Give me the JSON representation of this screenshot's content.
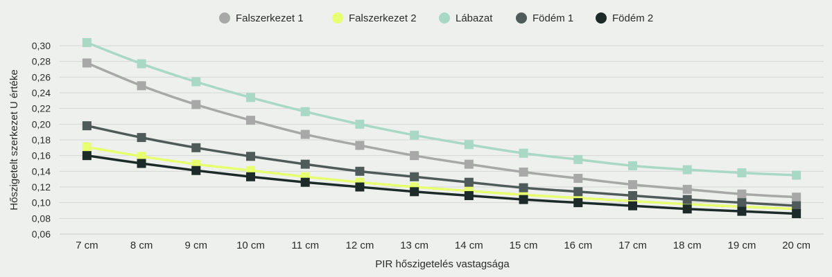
{
  "chart_data": {
    "type": "line",
    "title": "",
    "xlabel": "PIR hőszigetelés vastagsága",
    "ylabel": "Hőszigetelt szerkezet U értéke",
    "ylim": [
      0.06,
      0.3
    ],
    "ytick_step": 0.02,
    "y_ticks": [
      "0,06",
      "0,08",
      "0,10",
      "0,12",
      "0,14",
      "0,16",
      "0,18",
      "0,20",
      "0,22",
      "0,24",
      "0,26",
      "0,28",
      "0,30"
    ],
    "grid": "horizontal",
    "legend_position": "top-center",
    "categories": [
      "7 cm",
      "8 cm",
      "9 cm",
      "10 cm",
      "11 cm",
      "12 cm",
      "13 cm",
      "14 cm",
      "15 cm",
      "16 cm",
      "17 cm",
      "18 cm",
      "19 cm",
      "20 cm"
    ],
    "series": [
      {
        "name": "Falszerkezet 1",
        "color": "#A7A8A7",
        "values": [
          0.278,
          0.249,
          0.225,
          0.205,
          0.187,
          0.173,
          0.16,
          0.149,
          0.139,
          0.131,
          0.123,
          0.117,
          0.111,
          0.107
        ]
      },
      {
        "name": "Falszerkezet 2",
        "color": "#E8FF70",
        "values": [
          0.171,
          0.159,
          0.149,
          0.141,
          0.133,
          0.126,
          0.12,
          0.115,
          0.11,
          0.106,
          0.102,
          0.098,
          0.095,
          0.092
        ]
      },
      {
        "name": "Lábazat",
        "color": "#A9D9C4",
        "values": [
          0.304,
          0.277,
          0.254,
          0.234,
          0.216,
          0.2,
          0.186,
          0.174,
          0.163,
          0.155,
          0.147,
          0.142,
          0.138,
          0.135
        ]
      },
      {
        "name": "Födém 1",
        "color": "#4F5B59",
        "values": [
          0.198,
          0.183,
          0.17,
          0.159,
          0.149,
          0.14,
          0.133,
          0.126,
          0.119,
          0.114,
          0.109,
          0.104,
          0.1,
          0.096
        ]
      },
      {
        "name": "Födém 2",
        "color": "#1C2B28",
        "values": [
          0.16,
          0.15,
          0.141,
          0.133,
          0.126,
          0.12,
          0.114,
          0.109,
          0.104,
          0.1,
          0.096,
          0.092,
          0.089,
          0.086
        ]
      }
    ]
  }
}
